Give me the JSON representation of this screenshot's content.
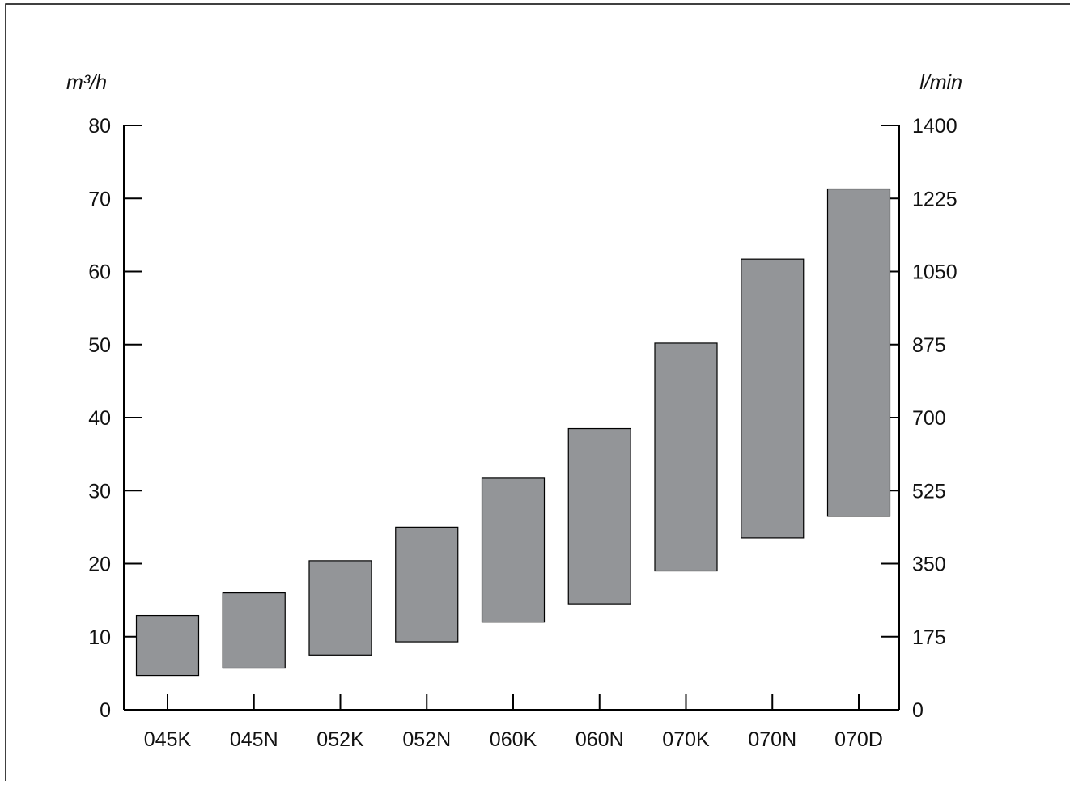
{
  "chart_data": {
    "type": "bar",
    "subtype": "floating-range",
    "title": "",
    "xlabel": "",
    "ylabel": "m³/h",
    "ylabel_right": "l/min",
    "ylim": [
      0,
      80
    ],
    "ylim_right": [
      0,
      1400
    ],
    "y_ticks": [
      "0",
      "10",
      "20",
      "30",
      "40",
      "50",
      "60",
      "70",
      "80"
    ],
    "y_ticks_right": [
      "0",
      "175",
      "350",
      "525",
      "700",
      "875",
      "1050",
      "1225",
      "1400"
    ],
    "categories": [
      "045K",
      "045N",
      "052K",
      "052N",
      "060K",
      "060N",
      "070K",
      "070N",
      "070D"
    ],
    "ranges": [
      [
        4.7,
        12.9
      ],
      [
        5.7,
        16.0
      ],
      [
        7.5,
        20.4
      ],
      [
        9.3,
        25.0
      ],
      [
        12.0,
        31.7
      ],
      [
        14.5,
        38.5
      ],
      [
        19.0,
        50.2
      ],
      [
        23.5,
        61.7
      ],
      [
        26.5,
        71.3
      ]
    ],
    "bar_color": "#939598",
    "grid": false,
    "legend": "none"
  }
}
